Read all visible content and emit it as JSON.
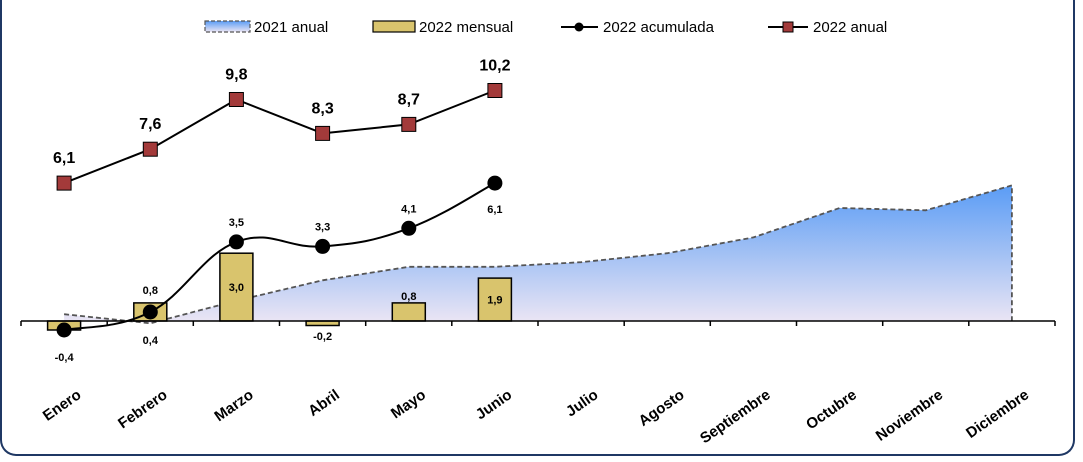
{
  "chart_data": {
    "type": "line",
    "categories": [
      "Enero",
      "Febrero",
      "Marzo",
      "Abril",
      "Mayo",
      "Junio",
      "Julio",
      "Agosto",
      "Septiembre",
      "Octubre",
      "Noviembre",
      "Diciembre"
    ],
    "series": [
      {
        "name": "2021 anual",
        "kind": "area",
        "values": [
          0.3,
          -0.1,
          0.9,
          1.8,
          2.4,
          2.4,
          2.6,
          3.0,
          3.7,
          5.0,
          4.9,
          6.0
        ]
      },
      {
        "name": "2022 mensual",
        "kind": "bar",
        "values": [
          -0.4,
          0.8,
          3.0,
          -0.2,
          0.8,
          1.9,
          null,
          null,
          null,
          null,
          null,
          null
        ],
        "labels": [
          "",
          "0,8",
          "3,0",
          "-0,2",
          "0,8",
          "1,9",
          "",
          "",
          "",
          "",
          "",
          ""
        ]
      },
      {
        "name": "2022 acumulada",
        "kind": "line",
        "values": [
          -0.4,
          0.4,
          3.5,
          3.3,
          4.1,
          6.1,
          null,
          null,
          null,
          null,
          null,
          null
        ],
        "labels": [
          "-0,4",
          "0,4",
          "3,5",
          "3,3",
          "4,1",
          "6,1",
          "",
          "",
          "",
          "",
          "",
          ""
        ]
      },
      {
        "name": "2022 anual",
        "kind": "line",
        "values": [
          6.1,
          7.6,
          9.8,
          8.3,
          8.7,
          10.2,
          null,
          null,
          null,
          null,
          null,
          null
        ],
        "labels": [
          "6,1",
          "7,6",
          "9,8",
          "8,3",
          "8,7",
          "10,2",
          "",
          "",
          "",
          "",
          "",
          ""
        ]
      }
    ],
    "legend_position": "top",
    "grid": false,
    "ylim": [
      -0.5,
      10.5
    ],
    "colors": {
      "area_top": "#5a9cf5",
      "area_bottom": "#ece6f4",
      "area_edge": "#555555",
      "bar_fill": "#d9c46d",
      "bar_edge": "#000000",
      "accum_marker": "#000000",
      "annual_marker": "#a33a3a"
    }
  }
}
